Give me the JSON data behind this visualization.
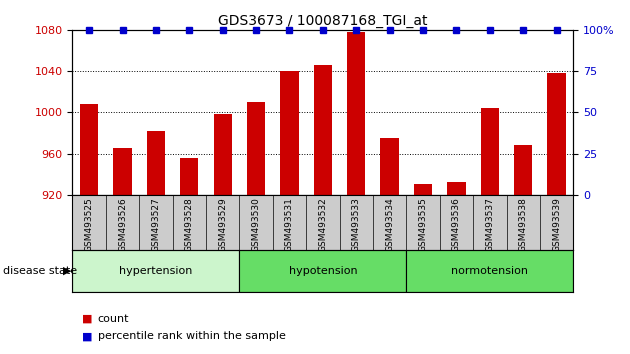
{
  "title": "GDS3673 / 100087168_TGI_at",
  "samples": [
    "GSM493525",
    "GSM493526",
    "GSM493527",
    "GSM493528",
    "GSM493529",
    "GSM493530",
    "GSM493531",
    "GSM493532",
    "GSM493533",
    "GSM493534",
    "GSM493535",
    "GSM493536",
    "GSM493537",
    "GSM493538",
    "GSM493539"
  ],
  "values": [
    1008,
    965,
    982,
    956,
    998,
    1010,
    1040,
    1046,
    1078,
    975,
    930,
    932,
    1004,
    968,
    1038
  ],
  "bar_color": "#cc0000",
  "dot_color": "#0000cc",
  "ylim_left": [
    920,
    1080
  ],
  "yticks_left": [
    920,
    960,
    1000,
    1040,
    1080
  ],
  "ylim_right": [
    0,
    100
  ],
  "yticks_right": [
    0,
    25,
    50,
    75,
    100
  ],
  "group_defs": [
    {
      "label": "hypertension",
      "start": 0,
      "end": 4,
      "color": "#ccf5cc"
    },
    {
      "label": "hypotension",
      "start": 5,
      "end": 9,
      "color": "#66dd66"
    },
    {
      "label": "normotension",
      "start": 10,
      "end": 14,
      "color": "#66dd66"
    }
  ],
  "xtick_bg_color": "#cccccc",
  "disease_label": "disease state",
  "legend_count": "count",
  "legend_percentile": "percentile rank within the sample"
}
